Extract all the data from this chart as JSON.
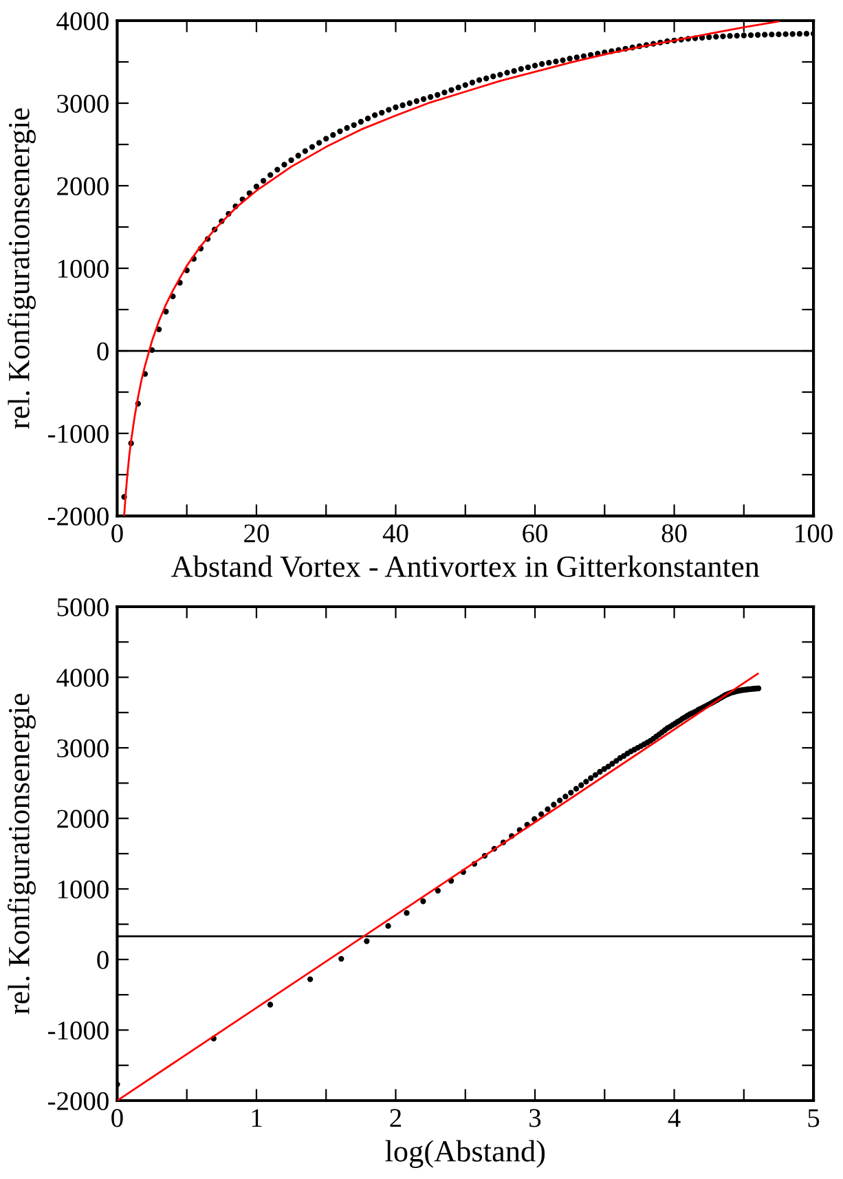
{
  "chart_data": [
    {
      "type": "scatter",
      "xlabel": "Abstand Vortex - Antivortex in Gitterkonstanten",
      "ylabel": "rel. Konfigurationsenergie",
      "xlim": [
        0,
        100
      ],
      "xticks": [
        0,
        {
          "value": 10,
          "label": null
        },
        20,
        {
          "value": 30,
          "label": null
        },
        40,
        {
          "value": 50,
          "label": null
        },
        60,
        {
          "value": 70,
          "label": null
        },
        80,
        {
          "value": 90,
          "label": null
        },
        100
      ],
      "ylim": [
        -2000,
        4000
      ],
      "yticks": [
        -2000,
        {
          "value": -1500,
          "label": null
        },
        -1000,
        {
          "value": -500,
          "label": null
        },
        0,
        {
          "value": 500,
          "label": null
        },
        1000,
        {
          "value": 1500,
          "label": null
        },
        2000,
        {
          "value": 2500,
          "label": null
        },
        3000,
        {
          "value": 3500,
          "label": null
        },
        4000
      ],
      "ref_lines": [
        {
          "axis": "y",
          "value": 0,
          "color": "#000000"
        }
      ],
      "series": [
        {
          "marker": "circle",
          "color": "#000000",
          "x": [
            1,
            2,
            3,
            4,
            5,
            6,
            7,
            8,
            9,
            10,
            11,
            12,
            13,
            14,
            15,
            16,
            17,
            18,
            19,
            20,
            21,
            22,
            23,
            24,
            25,
            26,
            27,
            28,
            29,
            30,
            31,
            32,
            33,
            34,
            35,
            36,
            37,
            38,
            39,
            40,
            41,
            42,
            43,
            44,
            45,
            46,
            47,
            48,
            49,
            50,
            51,
            52,
            53,
            54,
            55,
            56,
            57,
            58,
            59,
            60,
            61,
            62,
            63,
            64,
            65,
            66,
            67,
            68,
            69,
            70,
            71,
            72,
            73,
            74,
            75,
            76,
            77,
            78,
            79,
            80,
            81,
            82,
            83,
            84,
            85,
            86,
            87,
            88,
            89,
            90,
            91,
            92,
            93,
            94,
            95,
            96,
            97,
            98,
            99,
            100
          ],
          "values": [
            -1770,
            -1120,
            -640,
            -280,
            10,
            260,
            475,
            660,
            825,
            975,
            1115,
            1240,
            1355,
            1470,
            1570,
            1660,
            1750,
            1835,
            1910,
            1990,
            2060,
            2130,
            2195,
            2255,
            2310,
            2365,
            2420,
            2470,
            2520,
            2570,
            2615,
            2660,
            2700,
            2735,
            2775,
            2815,
            2855,
            2885,
            2920,
            2950,
            2975,
            3000,
            3025,
            3050,
            3075,
            3100,
            3130,
            3160,
            3190,
            3220,
            3250,
            3280,
            3300,
            3325,
            3345,
            3370,
            3390,
            3415,
            3435,
            3455,
            3475,
            3490,
            3505,
            3520,
            3540,
            3555,
            3570,
            3585,
            3600,
            3615,
            3630,
            3645,
            3660,
            3675,
            3690,
            3705,
            3720,
            3735,
            3750,
            3760,
            3770,
            3780,
            3787,
            3794,
            3800,
            3805,
            3810,
            3815,
            3818,
            3821,
            3824,
            3827,
            3830,
            3832,
            3834,
            3836,
            3838,
            3840,
            3842,
            3843
          ]
        },
        {
          "type": "line",
          "marker": "none",
          "color": "#ff0000",
          "x": [
            1,
            1.25,
            1.5,
            1.75,
            2,
            2.5,
            3,
            3.5,
            4,
            5,
            6,
            7,
            8,
            10,
            12,
            14,
            17,
            20,
            25,
            30,
            35,
            40,
            45,
            50,
            55,
            60,
            65,
            70,
            75,
            80,
            85,
            90,
            95
          ],
          "values": [
            -2000,
            -1710,
            -1470,
            -1260,
            -1090,
            -800,
            -560,
            -350,
            -180,
            120,
            360,
            560,
            730,
            1030,
            1270,
            1470,
            1730,
            1940,
            2230,
            2470,
            2680,
            2850,
            3010,
            3140,
            3270,
            3380,
            3490,
            3590,
            3680,
            3760,
            3840,
            3920,
            3990
          ]
        }
      ]
    },
    {
      "type": "scatter",
      "xlabel": "log(Abstand)",
      "ylabel": "rel. Konfigurationsenergie",
      "xlim": [
        0,
        5
      ],
      "xticks": [
        0,
        {
          "value": 0.5,
          "label": null
        },
        1,
        {
          "value": 1.5,
          "label": null
        },
        2,
        {
          "value": 2.5,
          "label": null
        },
        3,
        {
          "value": 3.5,
          "label": null
        },
        4,
        {
          "value": 4.5,
          "label": null
        },
        5
      ],
      "ylim": [
        -2000,
        5000
      ],
      "yticks": [
        -2000,
        {
          "value": -1500,
          "label": null
        },
        -1000,
        {
          "value": -500,
          "label": null
        },
        0,
        {
          "value": 500,
          "label": null
        },
        1000,
        {
          "value": 1500,
          "label": null
        },
        2000,
        {
          "value": 2500,
          "label": null
        },
        3000,
        {
          "value": 3500,
          "label": null
        },
        4000,
        {
          "value": 4500,
          "label": null
        },
        5000
      ],
      "ref_lines": [
        {
          "axis": "y",
          "value": 330,
          "color": "#000000"
        }
      ],
      "series": [
        {
          "marker": "circle",
          "color": "#000000",
          "x": [
            0,
            0.693,
            1.099,
            1.386,
            1.609,
            1.792,
            1.946,
            2.079,
            2.197,
            2.303,
            2.398,
            2.485,
            2.565,
            2.639,
            2.708,
            2.773,
            2.833,
            2.89,
            2.944,
            2.996,
            3.045,
            3.091,
            3.135,
            3.178,
            3.219,
            3.258,
            3.296,
            3.332,
            3.367,
            3.401,
            3.434,
            3.466,
            3.497,
            3.526,
            3.555,
            3.584,
            3.611,
            3.638,
            3.664,
            3.689,
            3.714,
            3.738,
            3.761,
            3.784,
            3.807,
            3.829,
            3.85,
            3.871,
            3.892,
            3.912,
            3.932,
            3.951,
            3.97,
            3.989,
            4.007,
            4.025,
            4.043,
            4.06,
            4.078,
            4.094,
            4.111,
            4.127,
            4.143,
            4.159,
            4.174,
            4.19,
            4.205,
            4.22,
            4.234,
            4.248,
            4.263,
            4.277,
            4.29,
            4.304,
            4.317,
            4.331,
            4.344,
            4.357,
            4.369,
            4.382,
            4.394,
            4.407,
            4.419,
            4.431,
            4.443,
            4.454,
            4.466,
            4.477,
            4.489,
            4.5,
            4.511,
            4.522,
            4.533,
            4.543,
            4.554,
            4.564,
            4.575,
            4.585,
            4.595,
            4.605
          ],
          "values": [
            -1770,
            -1120,
            -640,
            -280,
            10,
            260,
            475,
            660,
            825,
            975,
            1115,
            1240,
            1355,
            1470,
            1570,
            1660,
            1750,
            1835,
            1910,
            1990,
            2060,
            2130,
            2195,
            2255,
            2310,
            2365,
            2420,
            2470,
            2520,
            2570,
            2615,
            2660,
            2700,
            2735,
            2775,
            2815,
            2855,
            2885,
            2920,
            2950,
            2975,
            3000,
            3025,
            3050,
            3075,
            3100,
            3130,
            3160,
            3190,
            3220,
            3250,
            3280,
            3300,
            3325,
            3345,
            3370,
            3390,
            3415,
            3435,
            3455,
            3475,
            3490,
            3505,
            3520,
            3540,
            3555,
            3570,
            3585,
            3600,
            3615,
            3630,
            3645,
            3660,
            3675,
            3690,
            3705,
            3720,
            3735,
            3750,
            3760,
            3770,
            3780,
            3787,
            3794,
            3800,
            3805,
            3810,
            3815,
            3818,
            3821,
            3824,
            3827,
            3830,
            3832,
            3834,
            3836,
            3838,
            3840,
            3842,
            3843
          ]
        },
        {
          "type": "line",
          "marker": "none",
          "color": "#ff0000",
          "x": [
            0,
            4.6
          ],
          "values": [
            -2000,
            4050
          ]
        }
      ]
    }
  ]
}
